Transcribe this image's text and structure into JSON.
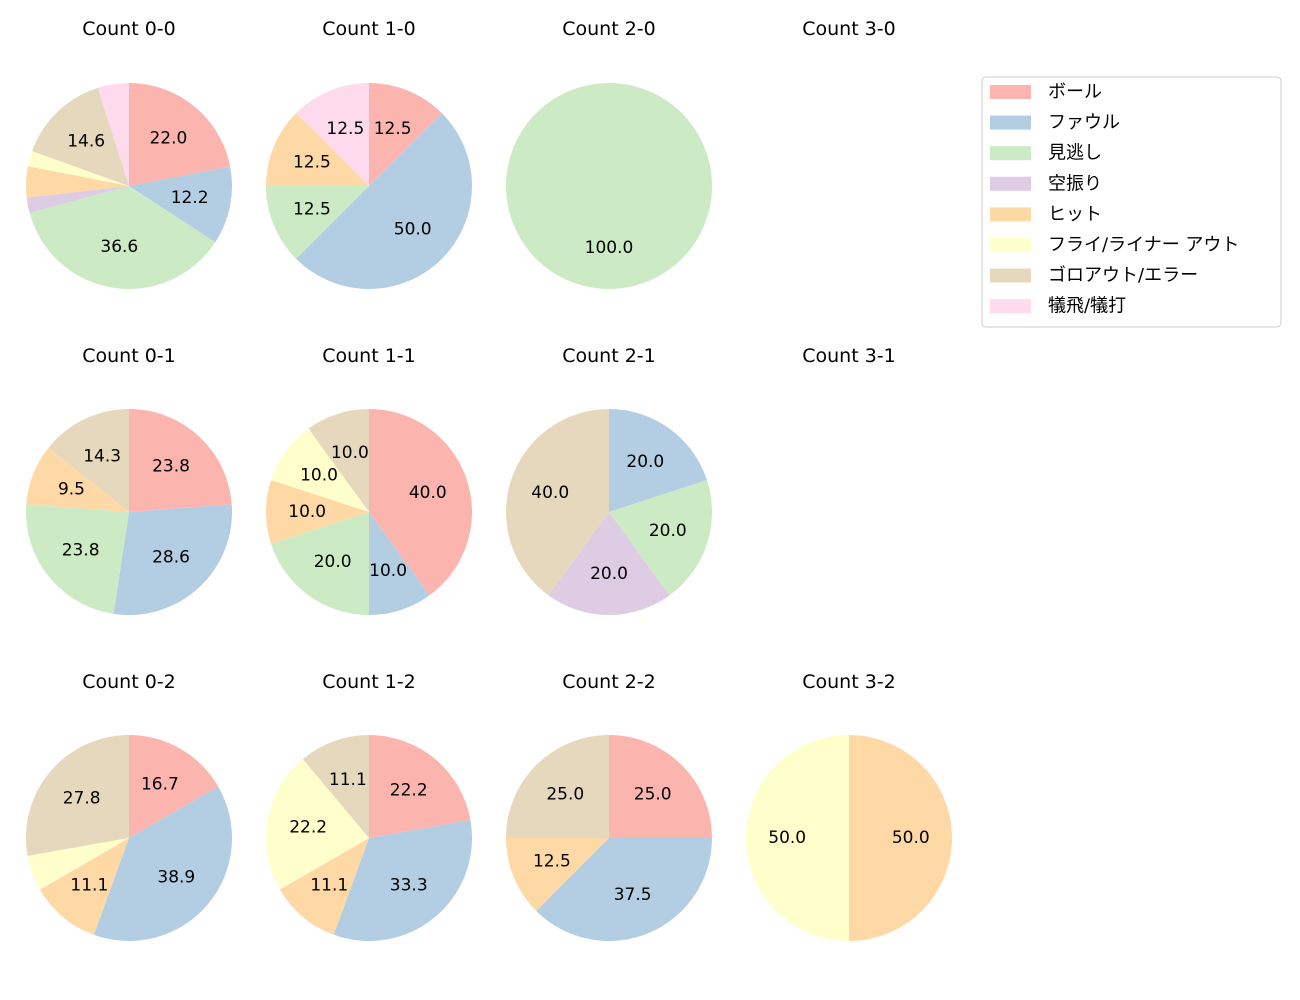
{
  "chart_data": {
    "type": "pie",
    "direction": "clockwise from top",
    "categories": [
      "ボール",
      "ファウル",
      "見逃し",
      "空振り",
      "ヒット",
      "フライ/ライナー アウト",
      "ゴロアウト/エラー",
      "犠飛/犠打"
    ],
    "colors": [
      "#fbb4ae",
      "#b3cde3",
      "#ccebc5",
      "#decbe4",
      "#fed9a6",
      "#ffffcc",
      "#e5d8bd",
      "#fddaec"
    ],
    "legend_position": "right",
    "pies": [
      {
        "title": "Count 0-0",
        "values": [
          22.0,
          12.2,
          36.6,
          2.4,
          4.9,
          2.4,
          14.6,
          4.9
        ],
        "labels": [
          "22.0",
          "12.2",
          "36.6",
          "",
          "",
          "",
          "14.6",
          ""
        ]
      },
      {
        "title": "Count 1-0",
        "values": [
          12.5,
          50.0,
          12.5,
          0,
          12.5,
          0,
          0,
          12.5
        ],
        "labels": [
          "12.5",
          "50.0",
          "12.5",
          "",
          "12.5",
          "",
          "",
          "12.5"
        ]
      },
      {
        "title": "Count 2-0",
        "values": [
          0,
          0,
          100.0,
          0,
          0,
          0,
          0,
          0
        ],
        "labels": [
          "",
          "",
          "100.0",
          "",
          "",
          "",
          "",
          ""
        ]
      },
      {
        "title": "Count 3-0",
        "values": [],
        "labels": []
      },
      {
        "title": "Count 0-1",
        "values": [
          23.8,
          28.6,
          23.8,
          0,
          9.5,
          0,
          14.3,
          0
        ],
        "labels": [
          "23.8",
          "28.6",
          "23.8",
          "",
          "9.5",
          "",
          "14.3",
          ""
        ]
      },
      {
        "title": "Count 1-1",
        "values": [
          40.0,
          10.0,
          20.0,
          0,
          10.0,
          10.0,
          10.0,
          0
        ],
        "labels": [
          "40.0",
          "10.0",
          "20.0",
          "",
          "10.0",
          "10.0",
          "10.0",
          ""
        ]
      },
      {
        "title": "Count 2-1",
        "values": [
          0,
          20.0,
          20.0,
          20.0,
          0,
          0,
          40.0,
          0
        ],
        "labels": [
          "",
          "20.0",
          "20.0",
          "20.0",
          "",
          "",
          "40.0",
          ""
        ]
      },
      {
        "title": "Count 3-1",
        "values": [],
        "labels": []
      },
      {
        "title": "Count 0-2",
        "values": [
          16.7,
          38.9,
          0,
          0,
          11.1,
          5.6,
          27.8,
          0
        ],
        "labels": [
          "16.7",
          "38.9",
          "",
          "",
          "11.1",
          "",
          "27.8",
          ""
        ]
      },
      {
        "title": "Count 1-2",
        "values": [
          22.2,
          33.3,
          0,
          0,
          11.1,
          22.2,
          11.1,
          0
        ],
        "labels": [
          "22.2",
          "33.3",
          "",
          "",
          "11.1",
          "22.2",
          "11.1",
          ""
        ]
      },
      {
        "title": "Count 2-2",
        "values": [
          25.0,
          37.5,
          0,
          0,
          12.5,
          0,
          25.0,
          0
        ],
        "labels": [
          "25.0",
          "37.5",
          "",
          "",
          "12.5",
          "",
          "25.0",
          ""
        ]
      },
      {
        "title": "Count 3-2",
        "values": [
          0,
          0,
          0,
          0,
          50.0,
          50.0,
          0,
          0
        ],
        "labels": [
          "",
          "",
          "",
          "",
          "50.0",
          "50.0",
          "",
          ""
        ]
      }
    ]
  }
}
